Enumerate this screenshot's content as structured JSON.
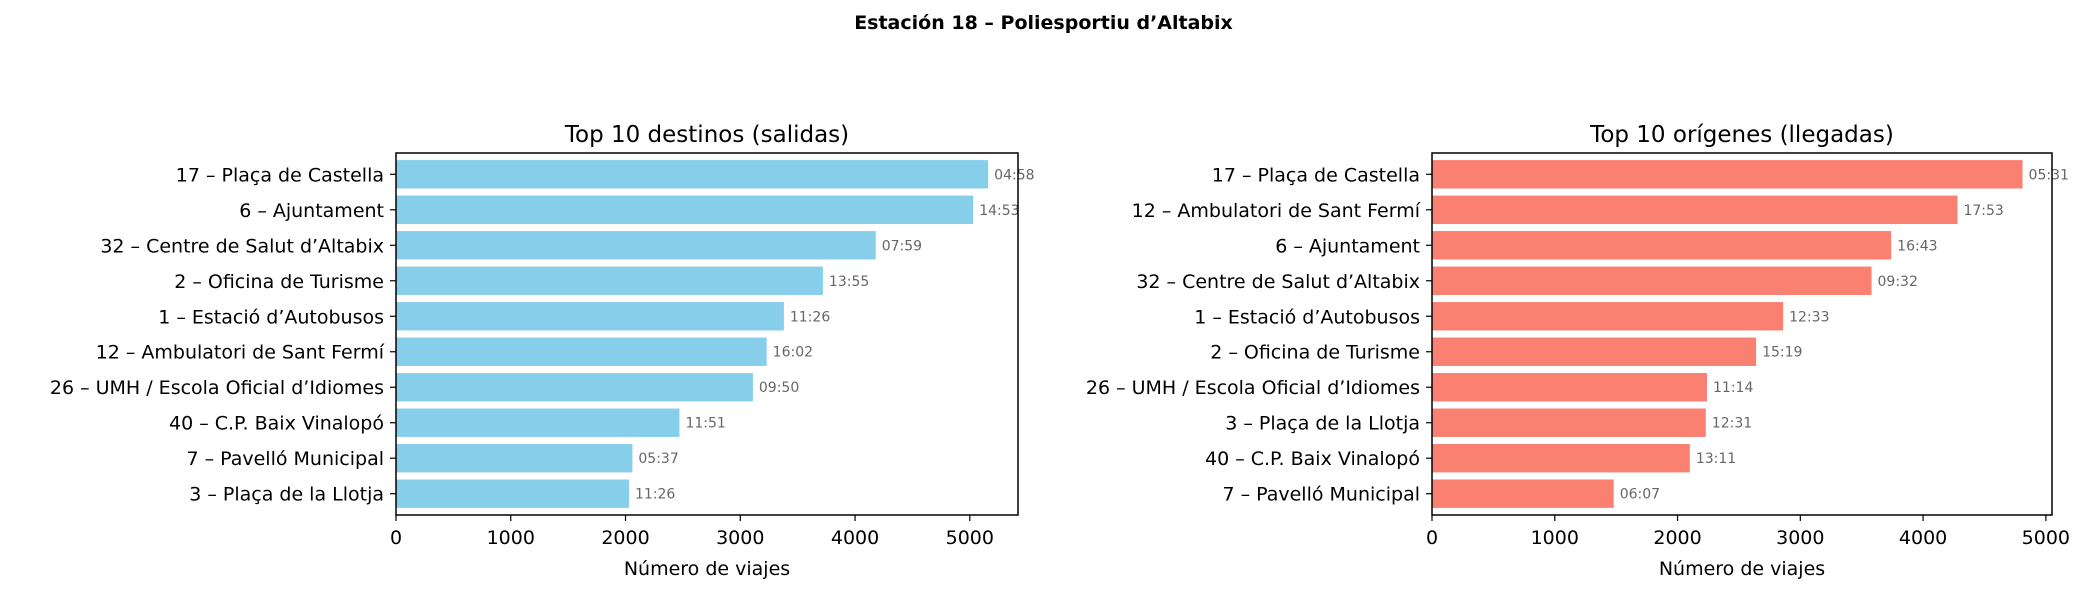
{
  "figure": {
    "title": "Estación 18 – Poliesportiu d’Altabix"
  },
  "chart_data": [
    {
      "type": "bar",
      "orientation": "horizontal",
      "title": "Top 10 destinos (salidas)",
      "xlabel": "Número de viajes",
      "ylabel": "",
      "xlim": [
        0,
        5420
      ],
      "xticks": [
        0,
        1000,
        2000,
        3000,
        4000,
        5000
      ],
      "color": "#87ceeb",
      "grid": false,
      "categories": [
        "17 – Plaça de Castella",
        "6 – Ajuntament",
        "32 – Centre de Salut d’Altabix",
        "2 – Oficina de Turisme",
        "1 – Estació d’Autobusos",
        "12 – Ambulatori de Sant Fermí",
        "26 – UMH / Escola Oficial d’Idiomes",
        "40 – C.P. Baix Vinalopó",
        "7 – Pavelló Municipal",
        "3 – Plaça de la Llotja"
      ],
      "values": [
        5160,
        5030,
        4180,
        3720,
        3380,
        3230,
        3110,
        2470,
        2060,
        2030
      ],
      "data_labels": [
        "04:58",
        "14:53",
        "07:59",
        "13:55",
        "11:26",
        "16:02",
        "09:50",
        "11:51",
        "05:37",
        "11:26"
      ]
    },
    {
      "type": "bar",
      "orientation": "horizontal",
      "title": "Top 10 orígenes (llegadas)",
      "xlabel": "Número de viajes",
      "ylabel": "",
      "xlim": [
        0,
        5050
      ],
      "xticks": [
        0,
        1000,
        2000,
        3000,
        4000,
        5000
      ],
      "color": "#fa8072",
      "grid": false,
      "categories": [
        "17 – Plaça de Castella",
        "12 – Ambulatori de Sant Fermí",
        "6 – Ajuntament",
        "32 – Centre de Salut d’Altabix",
        "1 – Estació d’Autobusos",
        "2 – Oficina de Turisme",
        "26 – UMH / Escola Oficial d’Idiomes",
        "3 – Plaça de la Llotja",
        "40 – C.P. Baix Vinalopó",
        "7 – Pavelló Municipal"
      ],
      "values": [
        4810,
        4280,
        3740,
        3580,
        2860,
        2640,
        2240,
        2230,
        2100,
        1480
      ],
      "data_labels": [
        "05:31",
        "17:53",
        "16:43",
        "09:32",
        "12:33",
        "15:19",
        "11:14",
        "12:31",
        "13:11",
        "06:07"
      ]
    }
  ]
}
